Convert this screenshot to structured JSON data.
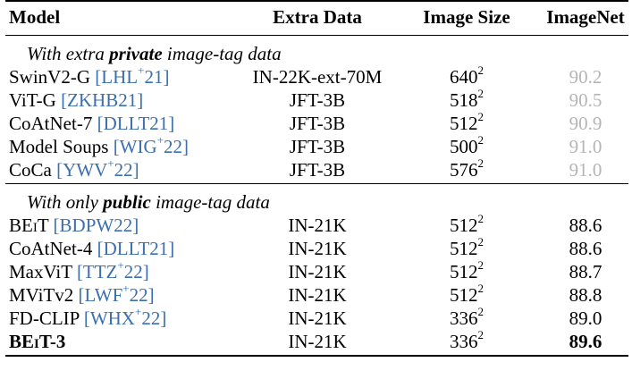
{
  "header": [
    "Model",
    "Extra Data",
    "Image Size",
    "ImageNet"
  ],
  "sections": [
    {
      "title": [
        "With extra ",
        "private",
        " image-tag data"
      ],
      "rows": [
        {
          "model": "SwinV2-G ",
          "cite": [
            "[LHL",
            "+",
            "21]"
          ],
          "extra": "IN-22K-ext-70M",
          "size": "640",
          "exp": "2",
          "imagenet": "90.2"
        },
        {
          "model": "ViT-G ",
          "cite": [
            "[ZKHB21]"
          ],
          "extra": "JFT-3B",
          "size": "518",
          "exp": "2",
          "imagenet": "90.5"
        },
        {
          "model": "CoAtNet-7 ",
          "cite": [
            "[DLLT21]"
          ],
          "extra": "JFT-3B",
          "size": "512",
          "exp": "2",
          "imagenet": "90.9"
        },
        {
          "model": "Model Soups ",
          "cite": [
            "[WIG",
            "+",
            "22]"
          ],
          "extra": "JFT-3B",
          "size": "500",
          "exp": "2",
          "imagenet": "91.0"
        },
        {
          "model": "CoCa ",
          "cite": [
            "[YWV",
            "+",
            "22]"
          ],
          "extra": "JFT-3B",
          "size": "576",
          "exp": "2",
          "imagenet": "91.0"
        }
      ]
    },
    {
      "title": [
        "With only ",
        "public",
        " image-tag data"
      ],
      "rows": [
        {
          "model": "BEiT ",
          "cite": [
            "[BDPW22]"
          ],
          "extra": "IN-21K",
          "size": "512",
          "exp": "2",
          "imagenet": "88.6"
        },
        {
          "model": "CoAtNet-4 ",
          "cite": [
            "[DLLT21]"
          ],
          "extra": "IN-21K",
          "size": "512",
          "exp": "2",
          "imagenet": "88.6"
        },
        {
          "model": "MaxViT ",
          "cite": [
            "[TTZ",
            "+",
            "22]"
          ],
          "extra": "IN-21K",
          "size": "512",
          "exp": "2",
          "imagenet": "88.7"
        },
        {
          "model": "MViTv2 ",
          "cite": [
            "[LWF",
            "+",
            "22]"
          ],
          "extra": "IN-21K",
          "size": "512",
          "exp": "2",
          "imagenet": "88.8"
        },
        {
          "model": "FD-CLIP ",
          "cite": [
            "[WHX",
            "+",
            "22]"
          ],
          "extra": "IN-21K",
          "size": "336",
          "exp": "2",
          "imagenet": "89.0"
        },
        {
          "model": "BEiT-3",
          "cite": [],
          "extra": "IN-21K",
          "size": "336",
          "exp": "2",
          "imagenet": "89.6"
        }
      ]
    }
  ]
}
